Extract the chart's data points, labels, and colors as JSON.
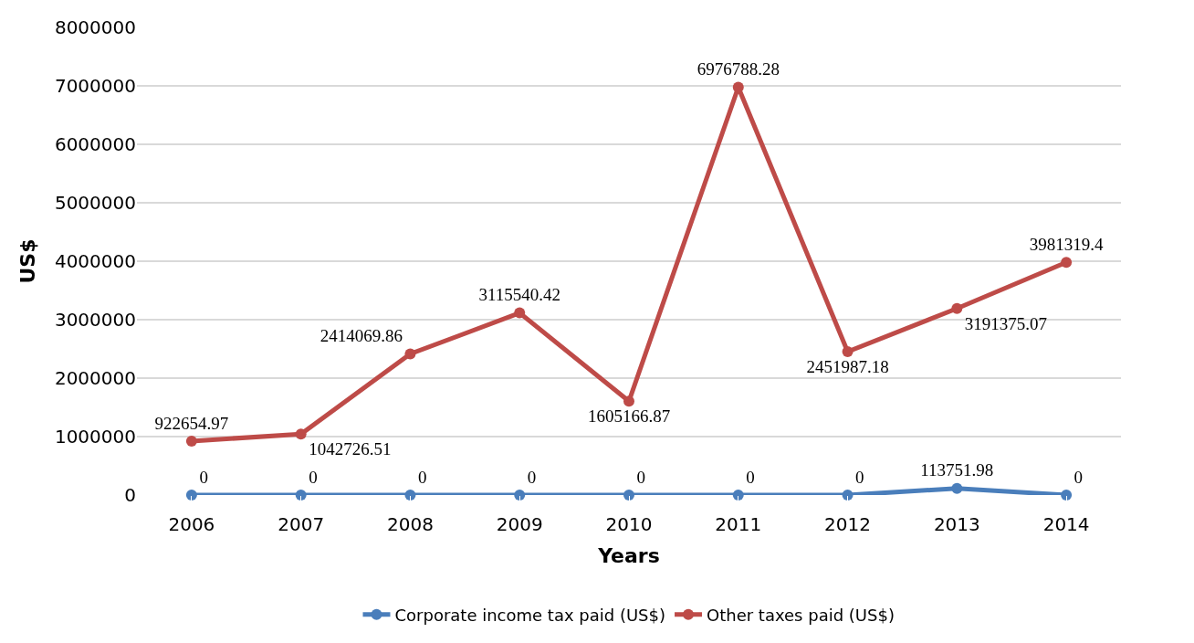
{
  "chart_data": {
    "type": "line",
    "xlabel": "Years",
    "ylabel": "US$",
    "categories": [
      "2006",
      "2007",
      "2008",
      "2009",
      "2010",
      "2011",
      "2012",
      "2013",
      "2014"
    ],
    "series": [
      {
        "name": "Corporate income tax paid (US$)",
        "color": "#4a7ebb",
        "values": [
          0,
          0,
          0,
          0,
          0,
          0,
          0,
          113751.98,
          0
        ]
      },
      {
        "name": "Other taxes paid (US$)",
        "color": "#be4b48",
        "values": [
          922654.97,
          1042726.51,
          2414069.86,
          3115540.42,
          1605166.87,
          6976788.28,
          2451987.18,
          3191375.07,
          3981319.4
        ]
      }
    ],
    "ylim": [
      0,
      8000000
    ],
    "yticks": [
      0,
      1000000,
      2000000,
      3000000,
      4000000,
      5000000,
      6000000,
      7000000,
      8000000
    ],
    "grid": "y",
    "legend": "bottom",
    "marker": "circle",
    "line_style": "solid",
    "data_labels": true
  }
}
